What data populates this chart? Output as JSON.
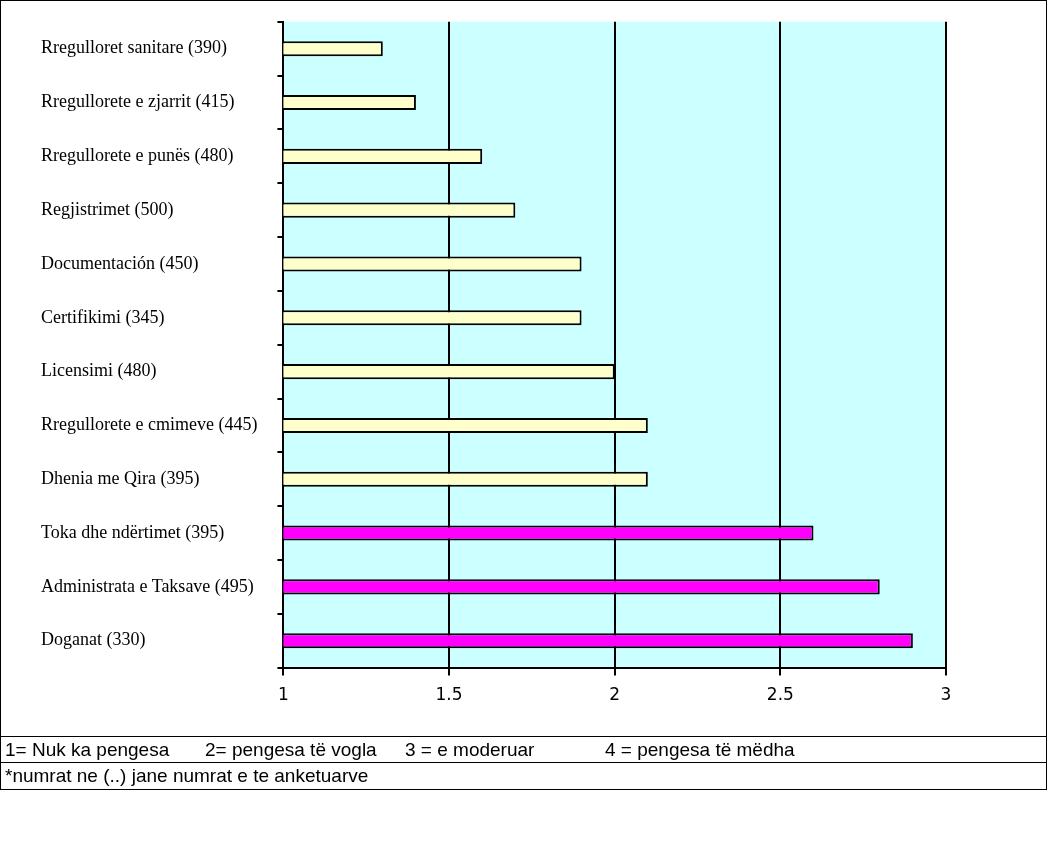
{
  "chart_data": {
    "type": "bar",
    "orientation": "horizontal",
    "categories": [
      "Rregulloret sanitare (390)",
      "Rregullorete e zjarrit (415)",
      "Rregullorete e punës (480)",
      "Regjistrimet (500)",
      "Documentación (450)",
      "Certifikimi (345)",
      "Licensimi (480)",
      "Rregullorete e cmimeve (445)",
      "Dhenia me Qira (395)",
      "Toka dhe ndërtimet (395)",
      "Administrata e Taksave (495)",
      "Doganat (330)"
    ],
    "values": [
      1.3,
      1.4,
      1.6,
      1.7,
      1.9,
      1.9,
      2.0,
      2.1,
      2.1,
      2.6,
      2.8,
      2.9
    ],
    "colors": [
      "#ffffcc",
      "#ffffcc",
      "#ffffcc",
      "#ffffcc",
      "#ffffcc",
      "#ffffcc",
      "#ffffcc",
      "#ffffcc",
      "#ffffcc",
      "#ff00ff",
      "#ff00ff",
      "#ff00ff"
    ],
    "xlim": [
      1,
      3
    ],
    "xticks": [
      1,
      1.5,
      2,
      2.5,
      3
    ],
    "grid": "x",
    "legend": false,
    "annotations": [
      "1= Nuk ka pengesa",
      "2= pengesa të vogla",
      "3 = e moderuar",
      "4 = pengesa të mëdha",
      "*numrat ne  (..) jane numrat e te anketuarve"
    ]
  }
}
